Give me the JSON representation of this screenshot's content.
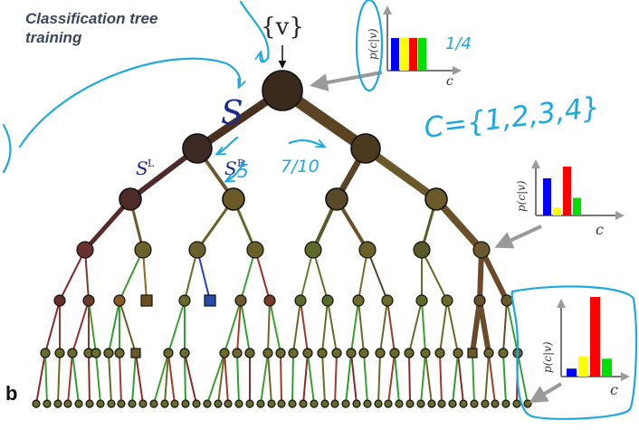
{
  "title": {
    "line1": "Classification tree",
    "line2": "training"
  },
  "panel_label": "b",
  "labels": {
    "input": "{v}",
    "root_set": "S",
    "left_set_base": "S",
    "left_set_sup": "L",
    "right_set_base": "S",
    "right_set_sup": "R",
    "y_axis": "p(c|v)",
    "x_axis": "c"
  },
  "annotations": {
    "uniform_prob": "1/4",
    "class_set": "C={1,2,3,4}",
    "node_count_note": "7/10",
    "left_count_note": "5"
  },
  "histograms": [
    {
      "id": "root",
      "values": [
        0.25,
        0.25,
        0.25,
        0.25
      ]
    },
    {
      "id": "mid",
      "values": [
        0.38,
        0.08,
        0.5,
        0.18
      ]
    },
    {
      "id": "leaf",
      "values": [
        0.08,
        0.2,
        0.8,
        0.18
      ]
    }
  ],
  "class_colors": [
    "#0000ff",
    "#ffff00",
    "#ff0000",
    "#00e000"
  ],
  "colors": {
    "annotation": "#1ea8e0",
    "arrow": "#9a9a9a",
    "title": "#3a4660"
  }
}
